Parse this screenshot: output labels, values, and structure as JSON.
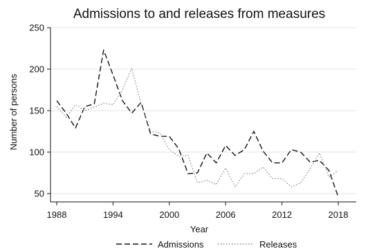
{
  "chart_data": {
    "type": "line",
    "title": "Admissions to and releases from measures",
    "xlabel": "Year",
    "ylabel": "Number of persons",
    "xlim": [
      1988,
      2018
    ],
    "ylim": [
      50,
      250
    ],
    "xticks": [
      "1988",
      "1994",
      "2000",
      "2006",
      "2012",
      "2018"
    ],
    "yticks": [
      "50",
      "100",
      "150",
      "200",
      "250"
    ],
    "grid": "horizontal",
    "legend_position": "bottom",
    "series": [
      {
        "name": "Admissions",
        "color": "#111111",
        "style": "dashed",
        "x": [
          1988,
          1989,
          1990,
          1991,
          1992,
          1993,
          1994,
          1995,
          1996,
          1997,
          1998,
          1999,
          2000,
          2001,
          2002,
          2003,
          2004,
          2005,
          2006,
          2007,
          2008,
          2009,
          2010,
          2011,
          2012,
          2013,
          2014,
          2015,
          2016,
          2017,
          2018
        ],
        "values": [
          162,
          147,
          129,
          155,
          158,
          223,
          193,
          162,
          147,
          160,
          122,
          119,
          119,
          104,
          74,
          75,
          99,
          87,
          108,
          96,
          103,
          125,
          101,
          87,
          87,
          103,
          100,
          88,
          90,
          78,
          46
        ]
      },
      {
        "name": "Releases",
        "color": "#888888",
        "style": "dotted",
        "x": [
          1988,
          1989,
          1990,
          1991,
          1992,
          1993,
          1994,
          1995,
          1996,
          1997,
          1998,
          1999,
          2000,
          2001,
          2002,
          2003,
          2004,
          2005,
          2006,
          2007,
          2008,
          2009,
          2010,
          2011,
          2012,
          2013,
          2014,
          2015,
          2016,
          2017,
          2018
        ],
        "values": [
          155,
          142,
          157,
          150,
          154,
          159,
          157,
          175,
          201,
          158,
          125,
          123,
          103,
          95,
          96,
          63,
          66,
          61,
          81,
          58,
          74,
          74,
          82,
          68,
          68,
          58,
          63,
          80,
          99,
          70,
          78
        ]
      }
    ]
  }
}
